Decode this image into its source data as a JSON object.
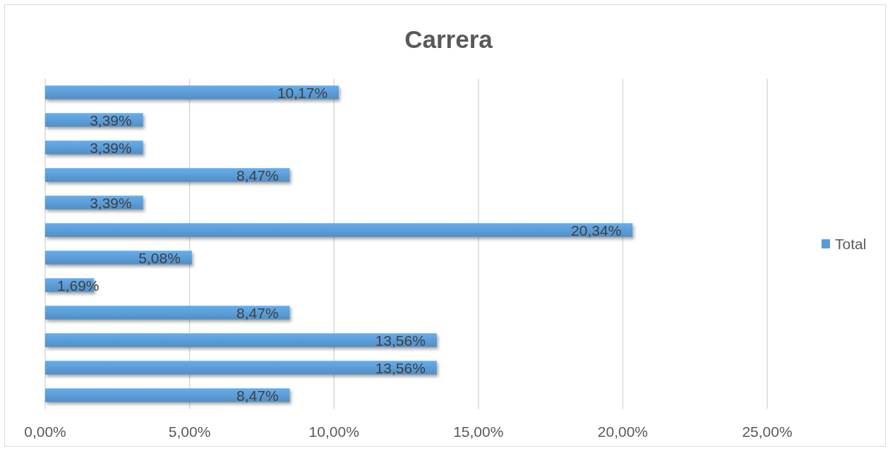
{
  "chart_data": {
    "type": "bar",
    "orientation": "horizontal",
    "title": "Carrera",
    "categories": [
      null,
      null,
      null,
      null,
      null,
      null,
      null,
      null,
      null,
      null,
      null,
      null
    ],
    "series": [
      {
        "name": "Total",
        "color": "#5b9bd5",
        "values": [
          10.17,
          3.39,
          3.39,
          8.47,
          3.39,
          20.34,
          5.08,
          1.69,
          8.47,
          13.56,
          13.56,
          8.47
        ],
        "value_labels": [
          "10,17%",
          "3,39%",
          "3,39%",
          "8,47%",
          "3,39%",
          "20,34%",
          "5,08%",
          "1,69%",
          "8,47%",
          "13,56%",
          "13,56%",
          "8,47%"
        ]
      }
    ],
    "xlim": [
      0,
      25
    ],
    "xticks": [
      {
        "value": 0,
        "label": "0,00%"
      },
      {
        "value": 5,
        "label": "5,00%"
      },
      {
        "value": 10,
        "label": "10,00%"
      },
      {
        "value": 15,
        "label": "15,00%"
      },
      {
        "value": 20,
        "label": "20,00%"
      },
      {
        "value": 25,
        "label": "25,00%"
      }
    ],
    "grid": "x",
    "legend": "right"
  }
}
